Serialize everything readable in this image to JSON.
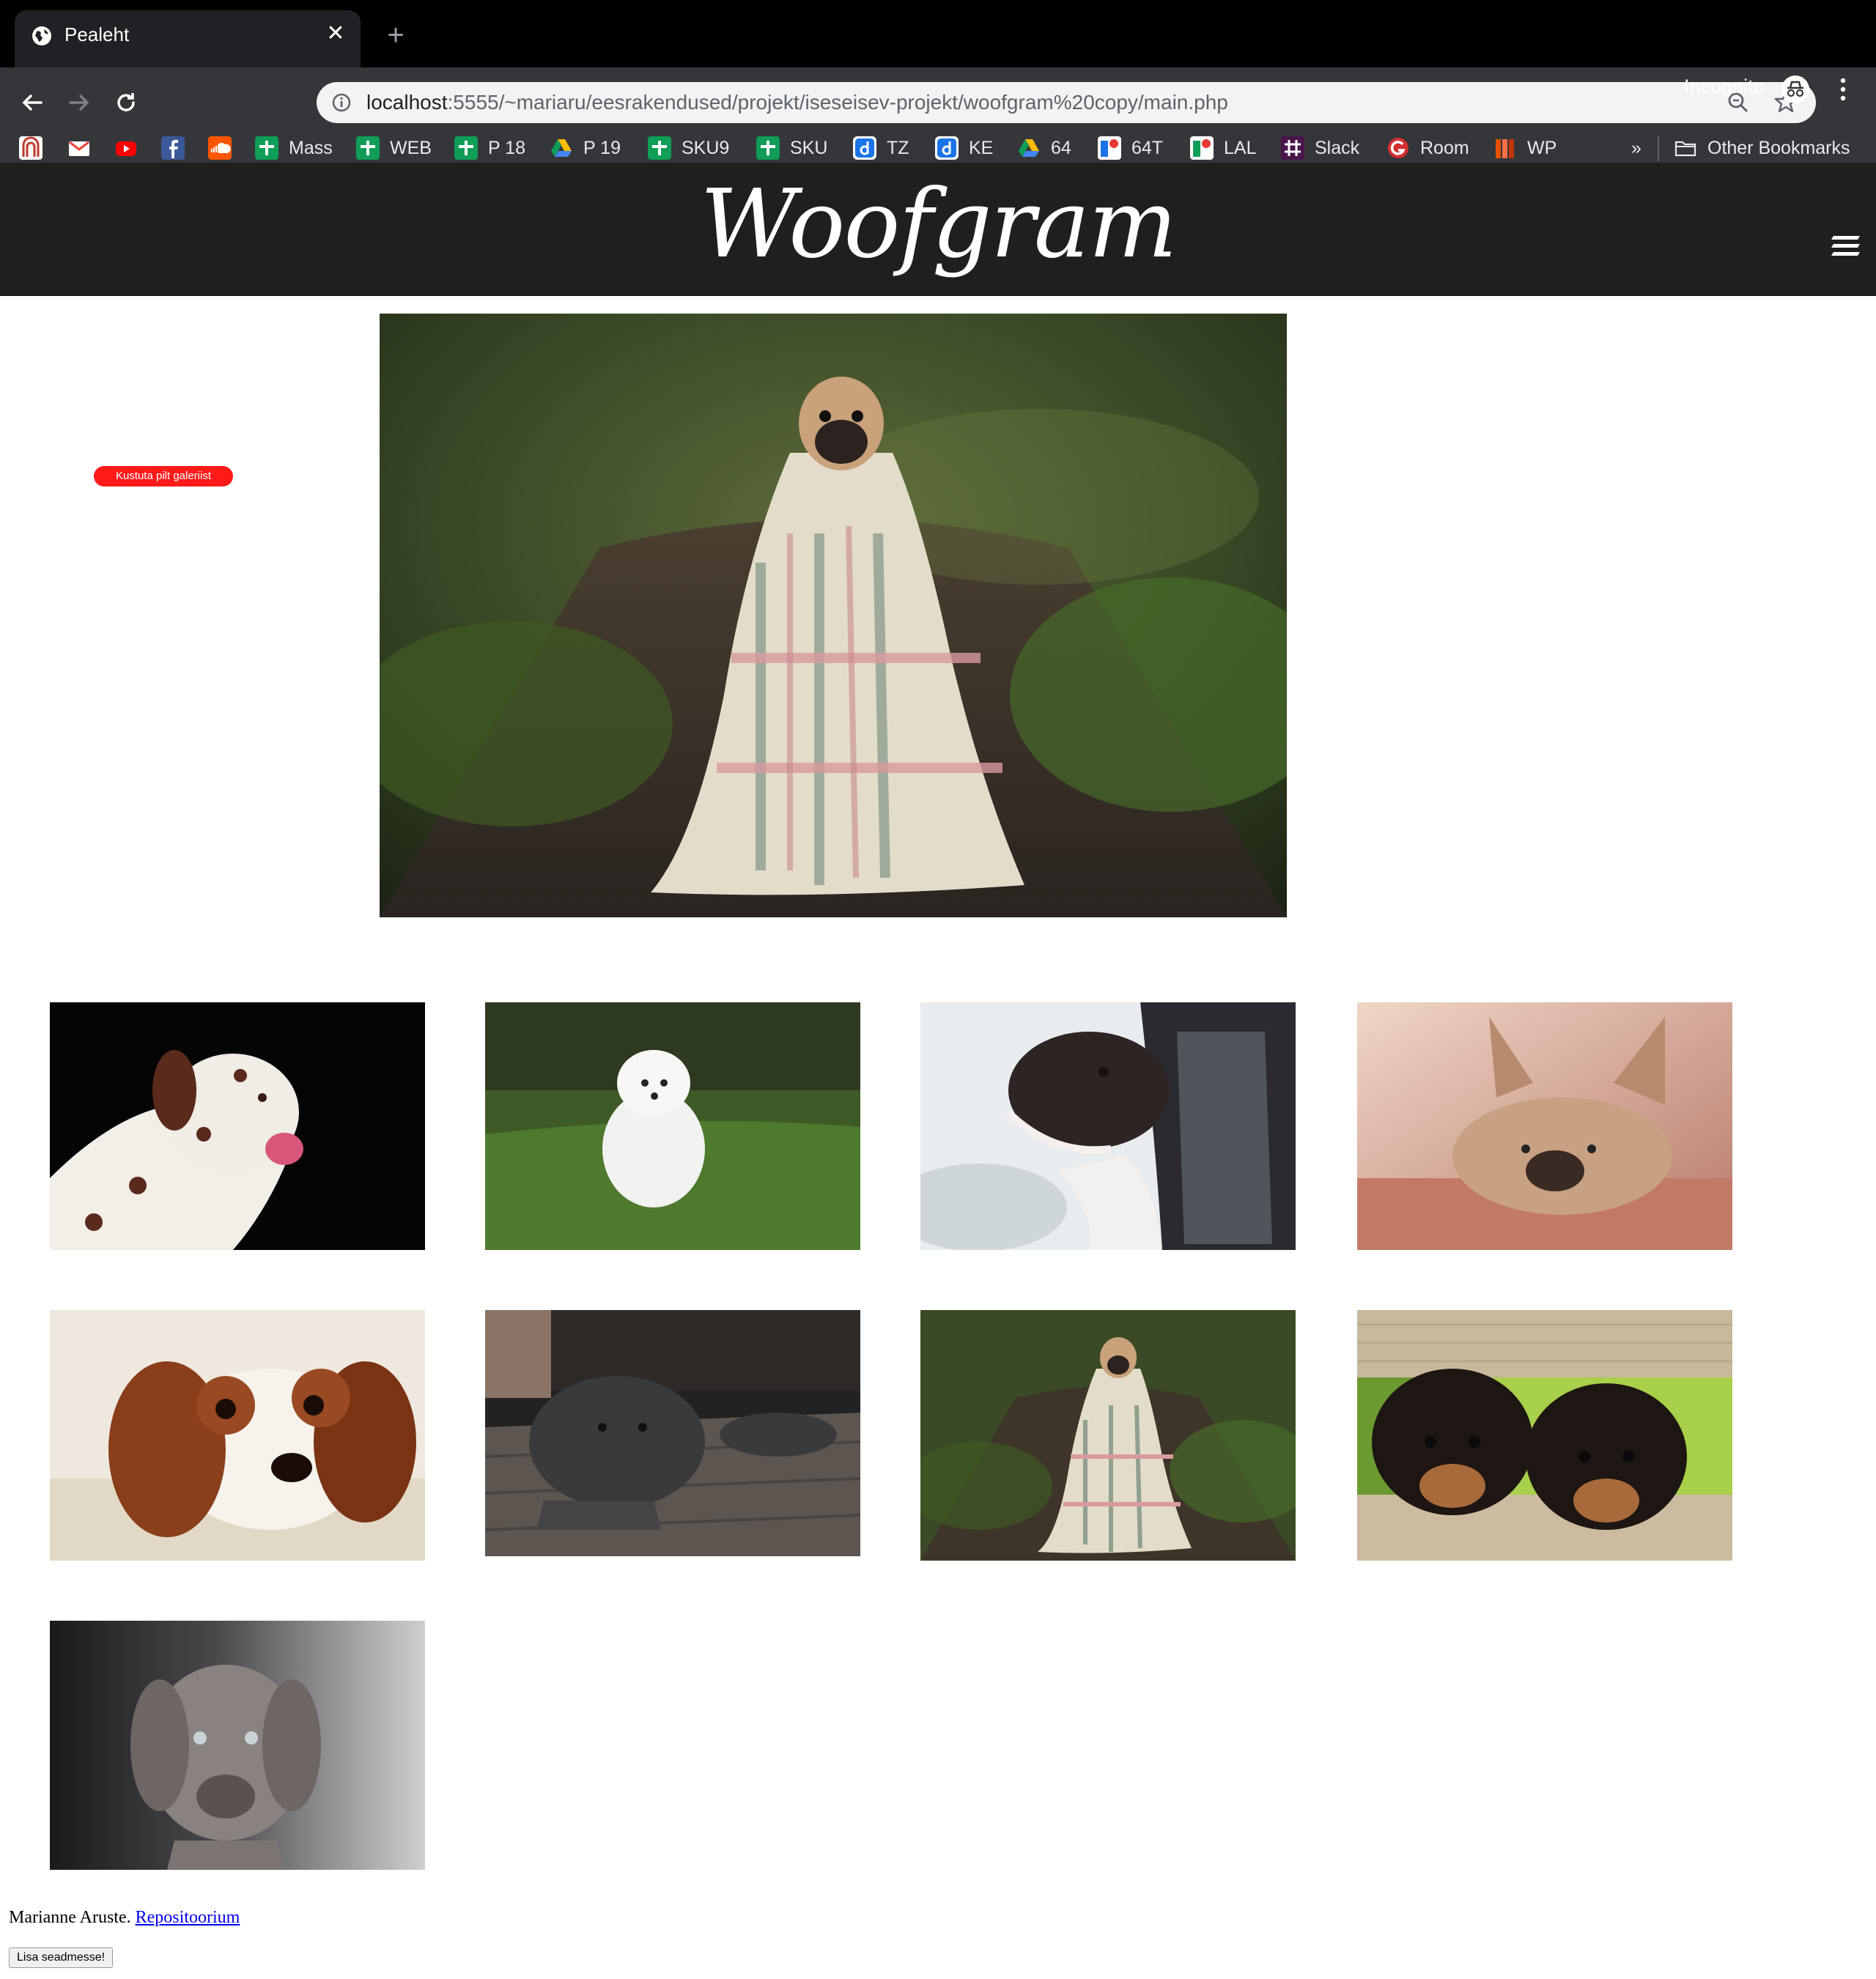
{
  "browser": {
    "tab_title": "Pealeht",
    "new_tab_symbol": "+",
    "url_host": "localhost",
    "url_rest": ":5555/~mariaru/eesrakendused/projekt/iseseisev-projekt/woofgram%20copy/main.php",
    "profile_label": "Incognito",
    "bookmarks": [
      {
        "label": "",
        "icon": "arch-icon",
        "color": "#c0392b"
      },
      {
        "label": "",
        "icon": "gmail-icon",
        "color": "#ea4335"
      },
      {
        "label": "",
        "icon": "youtube-icon",
        "color": "#ff0000"
      },
      {
        "label": "",
        "icon": "facebook-icon",
        "color": "#3b5998"
      },
      {
        "label": "",
        "icon": "soundcloud-icon",
        "color": "#ff5500"
      },
      {
        "label": "Mass",
        "icon": "plus-icon",
        "color": "#0f9d58"
      },
      {
        "label": "WEB",
        "icon": "plus-icon",
        "color": "#0f9d58"
      },
      {
        "label": "P 18",
        "icon": "plus-icon",
        "color": "#0f9d58"
      },
      {
        "label": "P 19",
        "icon": "drive-icon",
        "color": "#fbbc04"
      },
      {
        "label": "SKU9",
        "icon": "plus-icon",
        "color": "#0f9d58"
      },
      {
        "label": "SKU",
        "icon": "plus-icon",
        "color": "#0f9d58"
      },
      {
        "label": "TZ",
        "icon": "d-icon",
        "color": "#1a73e8"
      },
      {
        "label": "KE",
        "icon": "d-icon",
        "color": "#1a73e8"
      },
      {
        "label": "64",
        "icon": "drive-icon",
        "color": "#fbbc04"
      },
      {
        "label": "64T",
        "icon": "flag-icon",
        "color": "#1a73e8"
      },
      {
        "label": "LAL",
        "icon": "flag-icon",
        "color": "#e53935"
      },
      {
        "label": "Slack",
        "icon": "slack-icon",
        "color": "#4a154b"
      },
      {
        "label": "Room",
        "icon": "g-icon",
        "color": "#d32f2f"
      },
      {
        "label": "WP",
        "icon": "wp-icon",
        "color": "#e65100"
      }
    ],
    "more_label": "»",
    "other_bookmarks_label": "Other Bookmarks"
  },
  "page": {
    "site_title": "Woofgram",
    "delete_button": "Kustuta pilt galeriist",
    "footer_author": "Marianne Aruste.",
    "footer_link": "Repositoorium",
    "install_button": "Lisa seadmesse!"
  }
}
